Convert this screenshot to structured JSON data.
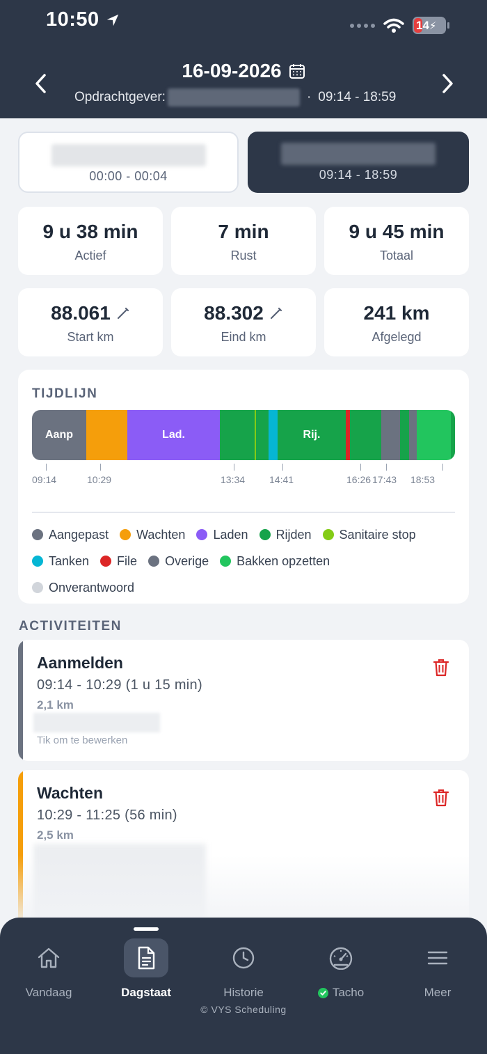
{
  "status_bar": {
    "time": "10:50",
    "battery": "14"
  },
  "header": {
    "date": "16-09-2026",
    "client_label": "Opdrachtgever:",
    "separator": "·",
    "time_range": "09:14 - 18:59"
  },
  "segments": [
    {
      "time": "00:00 - 00:04",
      "selected": false
    },
    {
      "time": "09:14 - 18:59",
      "selected": true
    }
  ],
  "stats": {
    "actief": {
      "value": "9 u 38 min",
      "label": "Actief"
    },
    "rust": {
      "value": "7 min",
      "label": "Rust"
    },
    "totaal": {
      "value": "9 u 45 min",
      "label": "Totaal"
    },
    "start_km": {
      "value": "88.061",
      "label": "Start km"
    },
    "eind_km": {
      "value": "88.302",
      "label": "Eind km"
    },
    "afgelegd": {
      "value": "241 km",
      "label": "Afgelegd"
    }
  },
  "timeline": {
    "title": "TIJDLIJN",
    "bar_labels": {
      "aanp": "Aanp",
      "lad": "Lad.",
      "rij": "Rij."
    },
    "ticks": [
      "09:14",
      "10:29",
      "13:34",
      "14:41",
      "16:26",
      "17:43",
      "18:53"
    ],
    "legend": [
      {
        "label": "Aangepast",
        "color": "#6b7280"
      },
      {
        "label": "Wachten",
        "color": "#f59e0b"
      },
      {
        "label": "Laden",
        "color": "#8b5cf6"
      },
      {
        "label": "Rijden",
        "color": "#16a34a"
      },
      {
        "label": "Sanitaire stop",
        "color": "#84cc16"
      },
      {
        "label": "Tanken",
        "color": "#06b6d4"
      },
      {
        "label": "File",
        "color": "#dc2626"
      },
      {
        "label": "Overige",
        "color": "#6b7280"
      },
      {
        "label": "Bakken opzetten",
        "color": "#22c55e"
      },
      {
        "label": "Onverantwoord",
        "color": "#d1d5db"
      }
    ]
  },
  "activities": {
    "title": "ACTIVITEITEN",
    "items": [
      {
        "name": "Aanmelden",
        "range": "09:14 - 10:29  (1 u 15 min)",
        "km": "2,1 km",
        "hint": "Tik om te bewerken",
        "color": "#6b7280"
      },
      {
        "name": "Wachten",
        "range": "10:29 - 11:25  (56 min)",
        "km": "2,5 km",
        "color": "#f59e0b"
      }
    ]
  },
  "tabbar": {
    "tabs": [
      {
        "label": "Vandaag",
        "icon": "home-icon"
      },
      {
        "label": "Dagstaat",
        "icon": "document-icon",
        "active": true
      },
      {
        "label": "Historie",
        "icon": "clock-icon"
      },
      {
        "label": "Tacho",
        "icon": "gauge-icon",
        "status": "check"
      },
      {
        "label": "Meer",
        "icon": "menu-icon"
      }
    ],
    "copyright": "© VYS Scheduling"
  }
}
